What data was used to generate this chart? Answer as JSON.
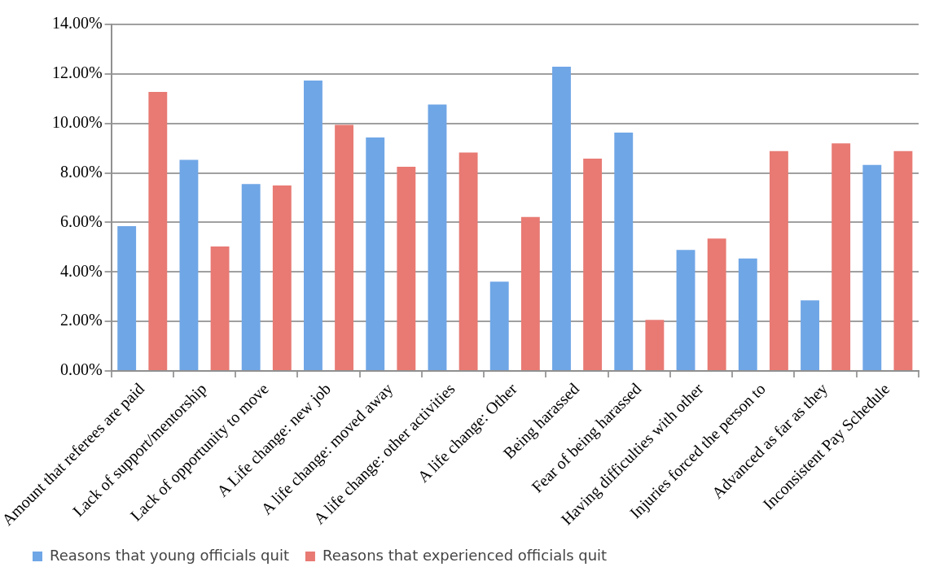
{
  "chart_data": {
    "type": "bar",
    "categories": [
      "Amount that referees are paid",
      "Lack of support/mentorship",
      "Lack of opportunity to move",
      "A Life change: new job",
      "A life change: moved away",
      "A life change: other activities",
      "A life change: Other",
      "Being harassed",
      "Fear of being harassed",
      "Having difficulties with other",
      "Injuries forced the person to",
      "Advanced as far as they",
      "Inconsistent Pay Schedule"
    ],
    "series": [
      {
        "name": "Reasons that young officials quit",
        "color": "#6fa6e6",
        "values": [
          5.85,
          8.53,
          7.55,
          11.73,
          9.43,
          10.76,
          3.61,
          12.29,
          9.63,
          4.89,
          4.54,
          2.85,
          8.32
        ]
      },
      {
        "name": "Reasons that experienced officials quit",
        "color": "#e87a73",
        "values": [
          11.27,
          5.03,
          7.49,
          9.94,
          8.25,
          8.82,
          6.22,
          8.58,
          2.06,
          5.35,
          8.88,
          9.19,
          8.88
        ]
      }
    ],
    "ylim": [
      0,
      14
    ],
    "yticks": [
      {
        "value": 0,
        "label": "0.00%"
      },
      {
        "value": 2,
        "label": "2.00%"
      },
      {
        "value": 4,
        "label": "4.00%"
      },
      {
        "value": 6,
        "label": "6.00%"
      },
      {
        "value": 8,
        "label": "8.00%"
      },
      {
        "value": 10,
        "label": "10.00%"
      },
      {
        "value": 12,
        "label": "12.00%"
      },
      {
        "value": 14,
        "label": "14.00%"
      }
    ],
    "grid": "y",
    "legend": "bottom left"
  }
}
